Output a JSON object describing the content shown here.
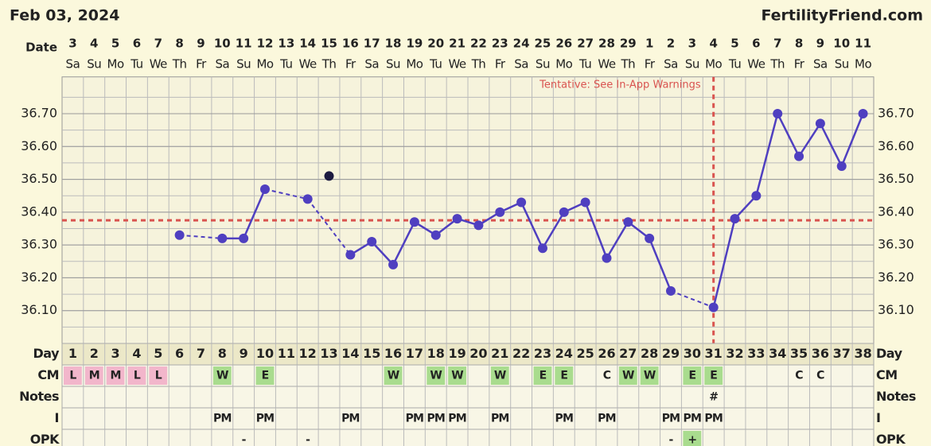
{
  "header": {
    "date": "Feb 03, 2024",
    "site": "FertilityFriend.com",
    "date_label": "Date"
  },
  "chart_data": {
    "type": "line",
    "categories": [
      1,
      2,
      3,
      4,
      5,
      6,
      7,
      8,
      9,
      10,
      11,
      12,
      13,
      14,
      15,
      16,
      17,
      18,
      19,
      20,
      21,
      22,
      23,
      24,
      25,
      26,
      27,
      28,
      29,
      30,
      31,
      32,
      33,
      34,
      35,
      36,
      37,
      38
    ],
    "dates": [
      3,
      4,
      5,
      6,
      7,
      8,
      9,
      10,
      11,
      12,
      13,
      14,
      15,
      16,
      17,
      18,
      19,
      20,
      21,
      22,
      23,
      24,
      25,
      26,
      27,
      28,
      29,
      1,
      2,
      3,
      4,
      5,
      6,
      7,
      8,
      9,
      10,
      11
    ],
    "weekdays": [
      "Sa",
      "Su",
      "Mo",
      "Tu",
      "We",
      "Th",
      "Fr",
      "Sa",
      "Su",
      "Mo",
      "Tu",
      "We",
      "Th",
      "Fr",
      "Sa",
      "Su",
      "Mo",
      "Tu",
      "We",
      "Th",
      "Fr",
      "Sa",
      "Su",
      "Mo",
      "Tu",
      "We",
      "Th",
      "Fr",
      "Sa",
      "Su",
      "Mo",
      "Tu",
      "We",
      "Th",
      "Fr",
      "Sa",
      "Su",
      "Mo"
    ],
    "series": [
      {
        "color": "#4f3fc0",
        "connect": true,
        "values": [
          null,
          null,
          null,
          null,
          null,
          36.33,
          null,
          36.32,
          36.32,
          36.47,
          null,
          36.44,
          null,
          36.27,
          36.31,
          36.24,
          36.37,
          36.33,
          36.38,
          36.36,
          36.4,
          36.43,
          36.29,
          36.4,
          36.43,
          36.26,
          36.37,
          36.32,
          36.16,
          null,
          36.11,
          36.38,
          36.45,
          36.7,
          36.57,
          36.67,
          36.54,
          36.7
        ]
      },
      {
        "color": "#1c1a40",
        "connect": false,
        "values": [
          null,
          null,
          null,
          null,
          null,
          null,
          null,
          null,
          null,
          null,
          null,
          null,
          36.51,
          null,
          null,
          null,
          null,
          null,
          null,
          null,
          null,
          null,
          null,
          null,
          null,
          null,
          null,
          null,
          null,
          null,
          null,
          null,
          null,
          null,
          null,
          null,
          null,
          null
        ]
      }
    ],
    "ylim": [
      36.0,
      36.8
    ],
    "yticks": [
      {
        "value": 36.1,
        "label": "36.10"
      },
      {
        "value": 36.2,
        "label": "36.20"
      },
      {
        "value": 36.3,
        "label": "36.30"
      },
      {
        "value": 36.4,
        "label": "36.40"
      },
      {
        "value": 36.5,
        "label": "36.50"
      },
      {
        "value": 36.6,
        "label": "36.60"
      },
      {
        "value": 36.7,
        "label": "36.70"
      }
    ],
    "coverline": 36.375,
    "ovulation_day": 31,
    "reference_color": "#d9534f",
    "annotation": "Tentative: See In-App Warnings"
  },
  "table": {
    "labels": [
      "Day",
      "CM",
      "Notes",
      "I",
      "OPK"
    ],
    "cm": [
      "L",
      "M",
      "M",
      "L",
      "L",
      null,
      null,
      "W",
      null,
      "E",
      null,
      null,
      null,
      null,
      null,
      "W",
      null,
      "W",
      "W",
      null,
      "W",
      null,
      "E",
      "E",
      null,
      "C",
      "W",
      "W",
      null,
      "E",
      "E",
      null,
      null,
      null,
      "C",
      "C",
      null,
      null
    ],
    "notes": [
      null,
      null,
      null,
      null,
      null,
      null,
      null,
      null,
      null,
      null,
      null,
      null,
      null,
      null,
      null,
      null,
      null,
      null,
      null,
      null,
      null,
      null,
      null,
      null,
      null,
      null,
      null,
      null,
      null,
      null,
      "#",
      null,
      null,
      null,
      null,
      null,
      null,
      null
    ],
    "intercourse": [
      null,
      null,
      null,
      null,
      null,
      null,
      null,
      "PM",
      null,
      "PM",
      null,
      null,
      null,
      "PM",
      null,
      null,
      "PM",
      "PM",
      "PM",
      null,
      "PM",
      null,
      null,
      "PM",
      null,
      "PM",
      null,
      null,
      "PM",
      "PM",
      "PM",
      null,
      null,
      null,
      null,
      null,
      null,
      null
    ],
    "opk": [
      null,
      null,
      null,
      null,
      null,
      null,
      null,
      null,
      "-",
      null,
      null,
      "-",
      null,
      null,
      null,
      null,
      null,
      null,
      null,
      null,
      null,
      null,
      null,
      null,
      null,
      null,
      null,
      null,
      "-",
      "+",
      null,
      null,
      null,
      null,
      null,
      null,
      null,
      null
    ],
    "cell_colors": {
      "L": "#f2b6cb",
      "M": "#f2b6cb",
      "W": "#a9dc8e",
      "E": "#a9dc8e",
      "+": "#a9dc8e"
    }
  }
}
